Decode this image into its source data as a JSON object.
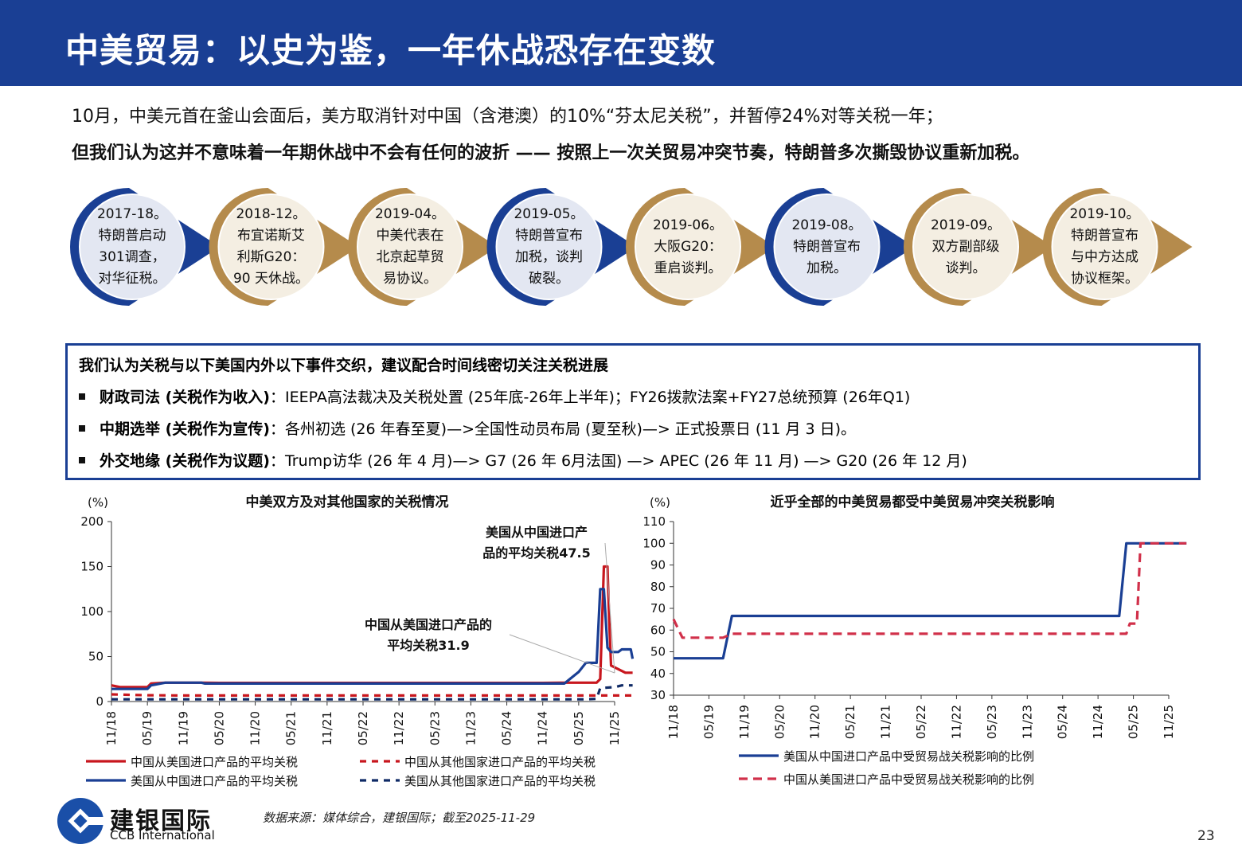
{
  "header": {
    "title": "中美贸易：以史为鉴，一年休战恐存在变数"
  },
  "intro": {
    "line1": "10月，中美元首在釜山会面后，美方取消针对中国（含港澳）的10%“芬太尼关税”，并暂停24%对等关税一年；",
    "line2": "但我们认为这并不意味着一年期休战中不会有任何的波折 —— 按照上一次关贸易冲突节奏，特朗普多次撕毁协议重新加税。"
  },
  "timeline": [
    {
      "lines": [
        "2017-18。",
        "特朗普启动",
        "301调查，",
        "对华征税。"
      ],
      "kind": "us"
    },
    {
      "lines": [
        "2018-12。",
        "布宜诺斯艾",
        "利斯G20：",
        "90 天休战。"
      ],
      "kind": "deal"
    },
    {
      "lines": [
        "2019-04。",
        "中美代表在",
        "北京起草贸",
        "易协议。"
      ],
      "kind": "deal"
    },
    {
      "lines": [
        "2019-05。",
        "特朗普宣布",
        "加税，谈判",
        "破裂。"
      ],
      "kind": "us"
    },
    {
      "lines": [
        "2019-06。",
        "大阪G20：",
        "重启谈判。"
      ],
      "kind": "deal"
    },
    {
      "lines": [
        "2019-08。",
        "特朗普宣布",
        "加税。"
      ],
      "kind": "us"
    },
    {
      "lines": [
        "2019-09。",
        "双方副部级",
        "谈判。"
      ],
      "kind": "deal"
    },
    {
      "lines": [
        "2019-10。",
        "特朗普宣布",
        "与中方达成",
        "协议框架。"
      ],
      "kind": "deal"
    }
  ],
  "box": {
    "heading": "我们认为关税与以下美国内外以下事件交织，建议配合时间线密切关注关税进展",
    "items": [
      {
        "label": "财政司法 (关税作为收入)",
        "text": "：IEEPA高法裁决及关税处置 (25年底-26年上半年)；FY26拨款法案+FY27总统预算 (26年Q1)"
      },
      {
        "label": "中期选举 (关税作为宣传)",
        "text": "：各州初选 (26 年春至夏)—>全国性动员布局 (夏至秋)—> 正式投票日 (11 月 3 日)。"
      },
      {
        "label": "外交地缘 (关税作为议题)",
        "text": "：Trump访华 (26 年 4 月)—> G7 (26 年 6月法国) —> APEC (26 年 11 月) —> G20 (26 年 12 月)"
      }
    ]
  },
  "colors": {
    "navy": "#1a3f94",
    "red": "#c8161d",
    "gold": "#b58b4c",
    "dashed_red": "#d1304a"
  },
  "chart_data": [
    {
      "type": "line",
      "title": "中美双方及对其他国家的关税情况",
      "unit_label": "(%)",
      "ylim": [
        0,
        200
      ],
      "yticks": [
        0,
        50,
        100,
        150,
        200
      ],
      "xticks": [
        "11/18",
        "05/19",
        "11/19",
        "05/20",
        "11/20",
        "05/21",
        "11/21",
        "05/22",
        "11/22",
        "05/23",
        "11/23",
        "05/24",
        "11/24",
        "05/25",
        "11/25"
      ],
      "annotations": [
        {
          "text_lines": [
            "美国从中国进口产",
            "品的平均关税47.5"
          ]
        },
        {
          "text_lines": [
            "中国从美国进口产品的",
            "平均关税31.9"
          ]
        }
      ],
      "series": [
        {
          "name": "中国从美国进口产品的平均关税",
          "style": "solid",
          "color": "#c8161d",
          "points": [
            [
              0,
              18
            ],
            [
              0.25,
              16
            ],
            [
              1,
              16
            ],
            [
              1.1,
              20
            ],
            [
              1.5,
              21
            ],
            [
              2,
              21
            ],
            [
              2.5,
              21
            ],
            [
              3,
              20.7
            ],
            [
              10,
              20.7
            ],
            [
              12,
              20.7
            ],
            [
              12.5,
              21
            ],
            [
              13.5,
              21
            ],
            [
              13.6,
              25
            ],
            [
              13.7,
              150
            ],
            [
              13.8,
              150
            ],
            [
              13.85,
              90
            ],
            [
              13.9,
              40
            ],
            [
              14,
              38
            ],
            [
              14.3,
              32
            ],
            [
              14.5,
              32
            ]
          ]
        },
        {
          "name": "中国从其他国家进口产品的平均关税",
          "style": "dash",
          "color": "#c8161d",
          "points": [
            [
              0,
              8
            ],
            [
              1,
              7
            ],
            [
              2,
              6.7
            ],
            [
              14.5,
              6.7
            ]
          ]
        },
        {
          "name": "美国从中国进口产品的平均关税",
          "style": "solid",
          "color": "#1a3f94",
          "points": [
            [
              0,
              14
            ],
            [
              1,
              14
            ],
            [
              1.1,
              18
            ],
            [
              1.5,
              21
            ],
            [
              2,
              21
            ],
            [
              2.5,
              21
            ],
            [
              2.6,
              20
            ],
            [
              11,
              20
            ],
            [
              12,
              20
            ],
            [
              12.6,
              20
            ],
            [
              13,
              33
            ],
            [
              13.2,
              43
            ],
            [
              13.5,
              43
            ],
            [
              13.6,
              125
            ],
            [
              13.7,
              125
            ],
            [
              13.8,
              60
            ],
            [
              13.9,
              55
            ],
            [
              14.1,
              55
            ],
            [
              14.2,
              58
            ],
            [
              14.45,
              58
            ],
            [
              14.5,
              47.5
            ]
          ]
        },
        {
          "name": "美国从其他国家进口产品的平均关税",
          "style": "dash",
          "color": "#0f2a66",
          "points": [
            [
              0,
              2.5
            ],
            [
              13.2,
              2.5
            ],
            [
              13.5,
              3
            ],
            [
              13.6,
              15
            ],
            [
              14,
              16
            ],
            [
              14.2,
              18
            ],
            [
              14.5,
              18
            ]
          ]
        }
      ]
    },
    {
      "type": "line",
      "title": "近乎全部的中美贸易都受中美贸易冲突关税影响",
      "unit_label": "(%)",
      "ylim": [
        30,
        110
      ],
      "yticks": [
        30,
        40,
        50,
        60,
        70,
        80,
        90,
        100,
        110
      ],
      "xticks": [
        "11/18",
        "05/19",
        "11/19",
        "05/20",
        "11/20",
        "05/21",
        "11/21",
        "05/22",
        "11/22",
        "05/23",
        "11/23",
        "05/24",
        "11/24",
        "05/25",
        "11/25"
      ],
      "series": [
        {
          "name": "美国从中国进口产品中受贸易战关税影响的比例",
          "style": "solid",
          "color": "#1a3f94",
          "points": [
            [
              0,
              47
            ],
            [
              1.4,
              47
            ],
            [
              1.65,
              66.5
            ],
            [
              12.6,
              66.5
            ],
            [
              12.8,
              100
            ],
            [
              14.5,
              100
            ]
          ]
        },
        {
          "name": "中国从美国进口产品中受贸易战关税影响的比例",
          "style": "dash",
          "color": "#d1304a",
          "points": [
            [
              0,
              65
            ],
            [
              0.25,
              56.5
            ],
            [
              1.4,
              56.5
            ],
            [
              1.65,
              58.3
            ],
            [
              12.8,
              58.3
            ],
            [
              12.9,
              63
            ],
            [
              13.1,
              63
            ],
            [
              13.2,
              100
            ],
            [
              14.5,
              100
            ]
          ]
        }
      ]
    }
  ],
  "footer": {
    "logo_cn": "建银国际",
    "logo_en": "CCB International",
    "source": "数据来源：媒体综合，建银国际；截至2025-11-29",
    "page": "23"
  }
}
